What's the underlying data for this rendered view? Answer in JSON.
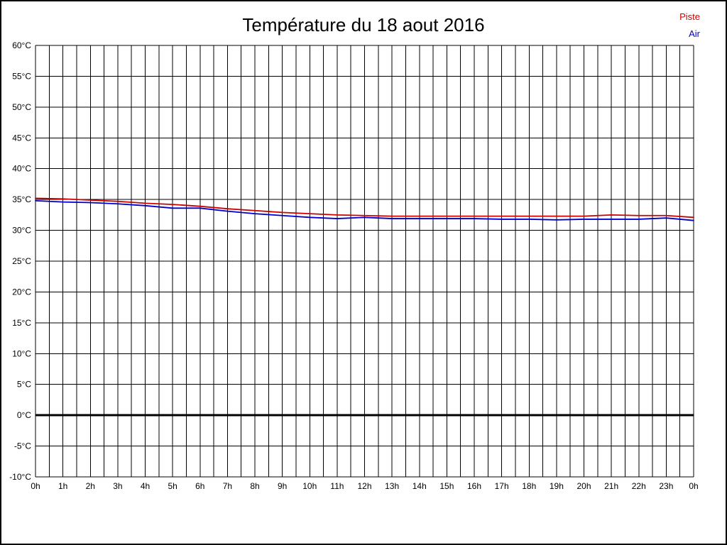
{
  "title": "Température du 18 aout 2016",
  "legend": [
    {
      "label": "Piste",
      "color": "#cc0000"
    },
    {
      "label": "Air",
      "color": "#0000cc"
    }
  ],
  "chart_data": {
    "type": "line",
    "title": "Température du 18 aout 2016",
    "xlabel": "",
    "ylabel": "",
    "ylim": [
      -10,
      60
    ],
    "y_step": 5,
    "x_minor_step": 0.5,
    "x_label_step": 1,
    "grid": true,
    "grid_color": "#000000",
    "zero_line": true,
    "legend_position": "top-right",
    "x": [
      0,
      1,
      2,
      3,
      4,
      5,
      6,
      7,
      8,
      9,
      10,
      11,
      12,
      13,
      14,
      15,
      16,
      17,
      18,
      19,
      20,
      21,
      22,
      23,
      24
    ],
    "x_tick_labels": [
      "0h",
      "1h",
      "2h",
      "3h",
      "4h",
      "5h",
      "6h",
      "7h",
      "8h",
      "9h",
      "10h",
      "11h",
      "12h",
      "13h",
      "14h",
      "15h",
      "16h",
      "17h",
      "18h",
      "19h",
      "20h",
      "21h",
      "22h",
      "23h",
      "0h"
    ],
    "y_tick_labels": [
      "60°C",
      "55°C",
      "50°C",
      "45°C",
      "40°C",
      "35°C",
      "30°C",
      "25°C",
      "20°C",
      "15°C",
      "10°C",
      "5°C",
      "0°C",
      "-5°C",
      "-10°C"
    ],
    "series": [
      {
        "name": "Piste",
        "color": "#cc0000",
        "values": [
          35.2,
          35.1,
          34.9,
          34.7,
          34.4,
          34.2,
          33.9,
          33.5,
          33.2,
          32.9,
          32.7,
          32.5,
          32.4,
          32.3,
          32.3,
          32.3,
          32.3,
          32.3,
          32.3,
          32.3,
          32.3,
          32.5,
          32.4,
          32.4,
          32.1
        ]
      },
      {
        "name": "Air",
        "color": "#0000cc",
        "values": [
          34.8,
          34.6,
          34.5,
          34.3,
          34.0,
          33.6,
          33.6,
          33.1,
          32.7,
          32.4,
          32.1,
          31.9,
          32.1,
          31.9,
          31.9,
          31.9,
          31.9,
          31.8,
          31.8,
          31.7,
          31.8,
          31.8,
          31.8,
          32.0,
          31.6
        ]
      }
    ]
  }
}
